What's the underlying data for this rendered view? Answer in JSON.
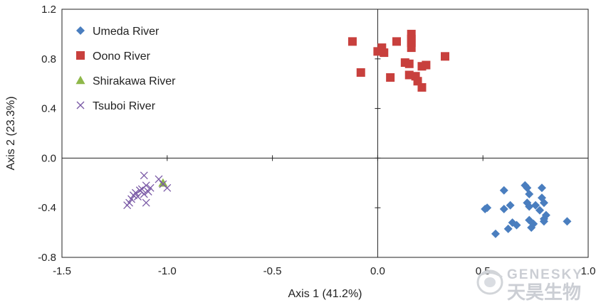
{
  "chart_data": {
    "type": "scatter",
    "xlabel": "Axis 1 (41.2%)",
    "ylabel": "Axis 2 (23.3%)",
    "xlim": [
      -1.5,
      1.0
    ],
    "ylim": [
      -0.8,
      1.2
    ],
    "xticks": [
      "-1.5",
      "-1.0",
      "-0.5",
      "0.0",
      "0.5",
      "1.0"
    ],
    "yticks": [
      "1.2",
      "0.8",
      "0.4",
      "0.0",
      "-0.4",
      "-0.8"
    ],
    "xtick_values": [
      -1.5,
      -1.0,
      -0.5,
      0.0,
      0.5,
      1.0
    ],
    "ytick_values": [
      1.2,
      0.8,
      0.4,
      0.0,
      -0.4,
      -0.8
    ],
    "grid": false,
    "zero_lines": true,
    "legend_position": "top-left",
    "series": [
      {
        "name": "Umeda River",
        "marker": "diamond",
        "color": "#4a7ebf",
        "points": [
          [
            0.52,
            -0.4
          ],
          [
            0.51,
            -0.41
          ],
          [
            0.56,
            -0.61
          ],
          [
            0.6,
            -0.26
          ],
          [
            0.6,
            -0.41
          ],
          [
            0.62,
            -0.57
          ],
          [
            0.63,
            -0.38
          ],
          [
            0.64,
            -0.52
          ],
          [
            0.66,
            -0.54
          ],
          [
            0.7,
            -0.22
          ],
          [
            0.71,
            -0.24
          ],
          [
            0.72,
            -0.29
          ],
          [
            0.71,
            -0.36
          ],
          [
            0.72,
            -0.5
          ],
          [
            0.73,
            -0.56
          ],
          [
            0.74,
            -0.53
          ],
          [
            0.72,
            -0.39
          ],
          [
            0.75,
            -0.38
          ],
          [
            0.77,
            -0.42
          ],
          [
            0.78,
            -0.24
          ],
          [
            0.78,
            -0.32
          ],
          [
            0.79,
            -0.36
          ],
          [
            0.79,
            -0.49
          ],
          [
            0.8,
            -0.46
          ],
          [
            0.79,
            -0.51
          ],
          [
            0.9,
            -0.51
          ]
        ]
      },
      {
        "name": "Oono River",
        "marker": "square",
        "color": "#c8403d",
        "points": [
          [
            -0.12,
            0.94
          ],
          [
            -0.08,
            0.69
          ],
          [
            0.0,
            0.86
          ],
          [
            0.02,
            0.89
          ],
          [
            0.03,
            0.85
          ],
          [
            0.06,
            0.65
          ],
          [
            0.09,
            0.94
          ],
          [
            0.13,
            0.77
          ],
          [
            0.15,
            0.76
          ],
          [
            0.15,
            0.67
          ],
          [
            0.16,
            1.0
          ],
          [
            0.16,
            0.96
          ],
          [
            0.16,
            0.93
          ],
          [
            0.16,
            0.89
          ],
          [
            0.18,
            0.66
          ],
          [
            0.19,
            0.62
          ],
          [
            0.21,
            0.74
          ],
          [
            0.21,
            0.57
          ],
          [
            0.23,
            0.75
          ],
          [
            0.32,
            0.82
          ]
        ]
      },
      {
        "name": "Shirakawa River",
        "marker": "triangle",
        "color": "#8fb84a",
        "points": [
          [
            -1.02,
            -0.2
          ]
        ]
      },
      {
        "name": "Tsuboi River",
        "marker": "x",
        "color": "#7a5aa6",
        "points": [
          [
            -1.19,
            -0.38
          ],
          [
            -1.18,
            -0.36
          ],
          [
            -1.17,
            -0.33
          ],
          [
            -1.16,
            -0.3
          ],
          [
            -1.15,
            -0.28
          ],
          [
            -1.14,
            -0.31
          ],
          [
            -1.13,
            -0.26
          ],
          [
            -1.12,
            -0.25
          ],
          [
            -1.11,
            -0.14
          ],
          [
            -1.11,
            -0.29
          ],
          [
            -1.1,
            -0.22
          ],
          [
            -1.1,
            -0.36
          ],
          [
            -1.09,
            -0.27
          ],
          [
            -1.08,
            -0.24
          ],
          [
            -1.04,
            -0.17
          ],
          [
            -1.02,
            -0.21
          ],
          [
            -1.0,
            -0.24
          ]
        ]
      }
    ]
  },
  "watermark": {
    "latin": "GENESKY",
    "cjk": "天昊生物"
  }
}
